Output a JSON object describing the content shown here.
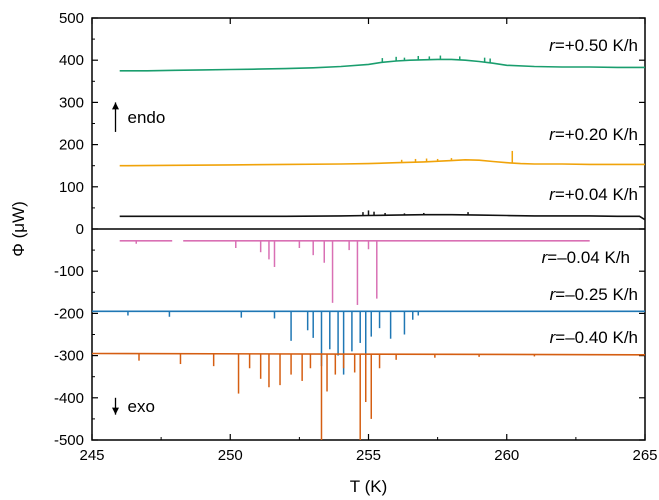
{
  "chart_data": {
    "type": "line",
    "xlabel": "T (K)",
    "ylabel": "Φ (μW)",
    "xlim": [
      245,
      265
    ],
    "ylim": [
      -500,
      500
    ],
    "x_ticks": [
      245,
      250,
      255,
      260,
      265
    ],
    "y_ticks": [
      -500,
      -400,
      -300,
      -200,
      -100,
      0,
      100,
      200,
      300,
      400,
      500
    ],
    "grid": false,
    "zero_line": true,
    "annotations": [
      {
        "text": "endo",
        "direction": "up",
        "x": 245.85,
        "y_from": 230,
        "y_to": 300
      },
      {
        "text": "exo",
        "direction": "down",
        "x": 245.85,
        "y_from": -400,
        "y_to": -440
      }
    ],
    "series": [
      {
        "name": "r=+0.50 K/h",
        "r_value": "+0.50 K/h",
        "color": "#1a9e6e",
        "x": [
          246.0,
          247.0,
          248.0,
          249.0,
          250.0,
          251.0,
          252.0,
          253.0,
          254.0,
          255.0,
          255.5,
          256.0,
          256.5,
          257.0,
          257.5,
          258.0,
          258.5,
          259.0,
          259.5,
          260.0,
          261.0,
          262.0,
          263.0,
          264.0,
          265.0
        ],
        "y": [
          375,
          375,
          376,
          377,
          378,
          379,
          380,
          382,
          385,
          390,
          395,
          398,
          400,
          401,
          402,
          402,
          400,
          397,
          393,
          388,
          385,
          384,
          384,
          383,
          383
        ],
        "spikes": [
          [
            255.5,
            405
          ],
          [
            256.0,
            408
          ],
          [
            256.3,
            406
          ],
          [
            256.8,
            410
          ],
          [
            257.2,
            409
          ],
          [
            257.6,
            411
          ],
          [
            258.3,
            409
          ],
          [
            259.2,
            406
          ],
          [
            259.4,
            404
          ]
        ]
      },
      {
        "name": "r=+0.20 K/h",
        "r_value": "+0.20 K/h",
        "color": "#f0a30a",
        "x": [
          246.0,
          248.0,
          250.0,
          252.0,
          254.0,
          255.0,
          256.0,
          257.0,
          258.0,
          258.5,
          259.0,
          259.5,
          260.0,
          260.5,
          261.0,
          262.0,
          263.0,
          264.0,
          265.0
        ],
        "y": [
          150,
          151,
          152,
          153,
          154,
          155,
          157,
          159,
          162,
          164,
          163,
          160,
          157,
          155,
          154,
          154,
          153,
          153,
          153
        ],
        "spikes": [
          [
            256.2,
            164
          ],
          [
            256.7,
            166
          ],
          [
            257.1,
            167
          ],
          [
            257.5,
            166
          ],
          [
            258.0,
            168
          ],
          [
            260.2,
            185
          ]
        ]
      },
      {
        "name": "r=+0.04 K/h",
        "r_value": "+0.04 K/h",
        "color": "#111111",
        "x": [
          246.0,
          248.0,
          250.0,
          252.0,
          254.0,
          255.0,
          256.0,
          257.0,
          258.0,
          259.0,
          260.0,
          261.0,
          262.0,
          263.0,
          264.0,
          264.8,
          265.0
        ],
        "y": [
          30,
          30,
          30,
          30,
          31,
          32,
          33,
          34,
          34,
          33,
          32,
          31,
          31,
          31,
          30,
          30,
          22
        ],
        "spikes": [
          [
            254.8,
            40
          ],
          [
            255.0,
            44
          ],
          [
            255.2,
            41
          ],
          [
            255.6,
            38
          ],
          [
            256.3,
            37
          ],
          [
            257.0,
            38
          ],
          [
            258.6,
            40
          ]
        ]
      },
      {
        "name": "r=–0.04 K/h",
        "r_value": "–0.04 K/h",
        "color": "#d970b4",
        "x": [
          246.0,
          247.9
        ],
        "y": [
          -28,
          -28
        ],
        "x2": [
          248.3,
          263.0
        ],
        "y2": [
          -28,
          -28
        ],
        "spikes": [
          [
            246.6,
            -35
          ],
          [
            250.2,
            -45
          ],
          [
            251.1,
            -55
          ],
          [
            251.4,
            -72
          ],
          [
            251.6,
            -90
          ],
          [
            252.5,
            -45
          ],
          [
            253.0,
            -62
          ],
          [
            253.4,
            -80
          ],
          [
            253.7,
            -175
          ],
          [
            254.3,
            -50
          ],
          [
            254.6,
            -180
          ],
          [
            255.3,
            -165
          ],
          [
            255.0,
            -48
          ]
        ]
      },
      {
        "name": "r=–0.25 K/h",
        "r_value": "–0.25 K/h",
        "color": "#1f77b4",
        "x": [
          245.0,
          265.0
        ],
        "y": [
          -195,
          -195
        ],
        "spikes": [
          [
            246.3,
            -205
          ],
          [
            247.8,
            -208
          ],
          [
            250.4,
            -210
          ],
          [
            251.6,
            -212
          ],
          [
            252.2,
            -265
          ],
          [
            252.8,
            -240
          ],
          [
            253.0,
            -258
          ],
          [
            253.3,
            -325
          ],
          [
            253.6,
            -285
          ],
          [
            253.9,
            -300
          ],
          [
            254.1,
            -345
          ],
          [
            254.4,
            -290
          ],
          [
            254.7,
            -270
          ],
          [
            254.9,
            -320
          ],
          [
            255.1,
            -255
          ],
          [
            255.4,
            -235
          ],
          [
            255.8,
            -260
          ],
          [
            256.3,
            -250
          ],
          [
            256.6,
            -215
          ],
          [
            256.8,
            -205
          ]
        ]
      },
      {
        "name": "r=–0.40 K/h",
        "r_value": "–0.40 K/h",
        "color": "#d55e12",
        "x": [
          245.0,
          265.0
        ],
        "y": [
          -295,
          -298
        ],
        "spikes": [
          [
            246.7,
            -312
          ],
          [
            248.2,
            -320
          ],
          [
            249.4,
            -325
          ],
          [
            250.3,
            -390
          ],
          [
            250.7,
            -330
          ],
          [
            251.1,
            -355
          ],
          [
            251.4,
            -375
          ],
          [
            251.8,
            -370
          ],
          [
            252.2,
            -345
          ],
          [
            252.6,
            -360
          ],
          [
            252.9,
            -330
          ],
          [
            253.3,
            -500
          ],
          [
            253.5,
            -385
          ],
          [
            253.8,
            -345
          ],
          [
            254.1,
            -330
          ],
          [
            254.5,
            -340
          ],
          [
            254.7,
            -500
          ],
          [
            254.9,
            -410
          ],
          [
            255.1,
            -450
          ],
          [
            255.4,
            -330
          ],
          [
            256.0,
            -310
          ],
          [
            257.4,
            -305
          ],
          [
            259.0,
            -303
          ],
          [
            261.0,
            -302
          ]
        ]
      }
    ]
  }
}
